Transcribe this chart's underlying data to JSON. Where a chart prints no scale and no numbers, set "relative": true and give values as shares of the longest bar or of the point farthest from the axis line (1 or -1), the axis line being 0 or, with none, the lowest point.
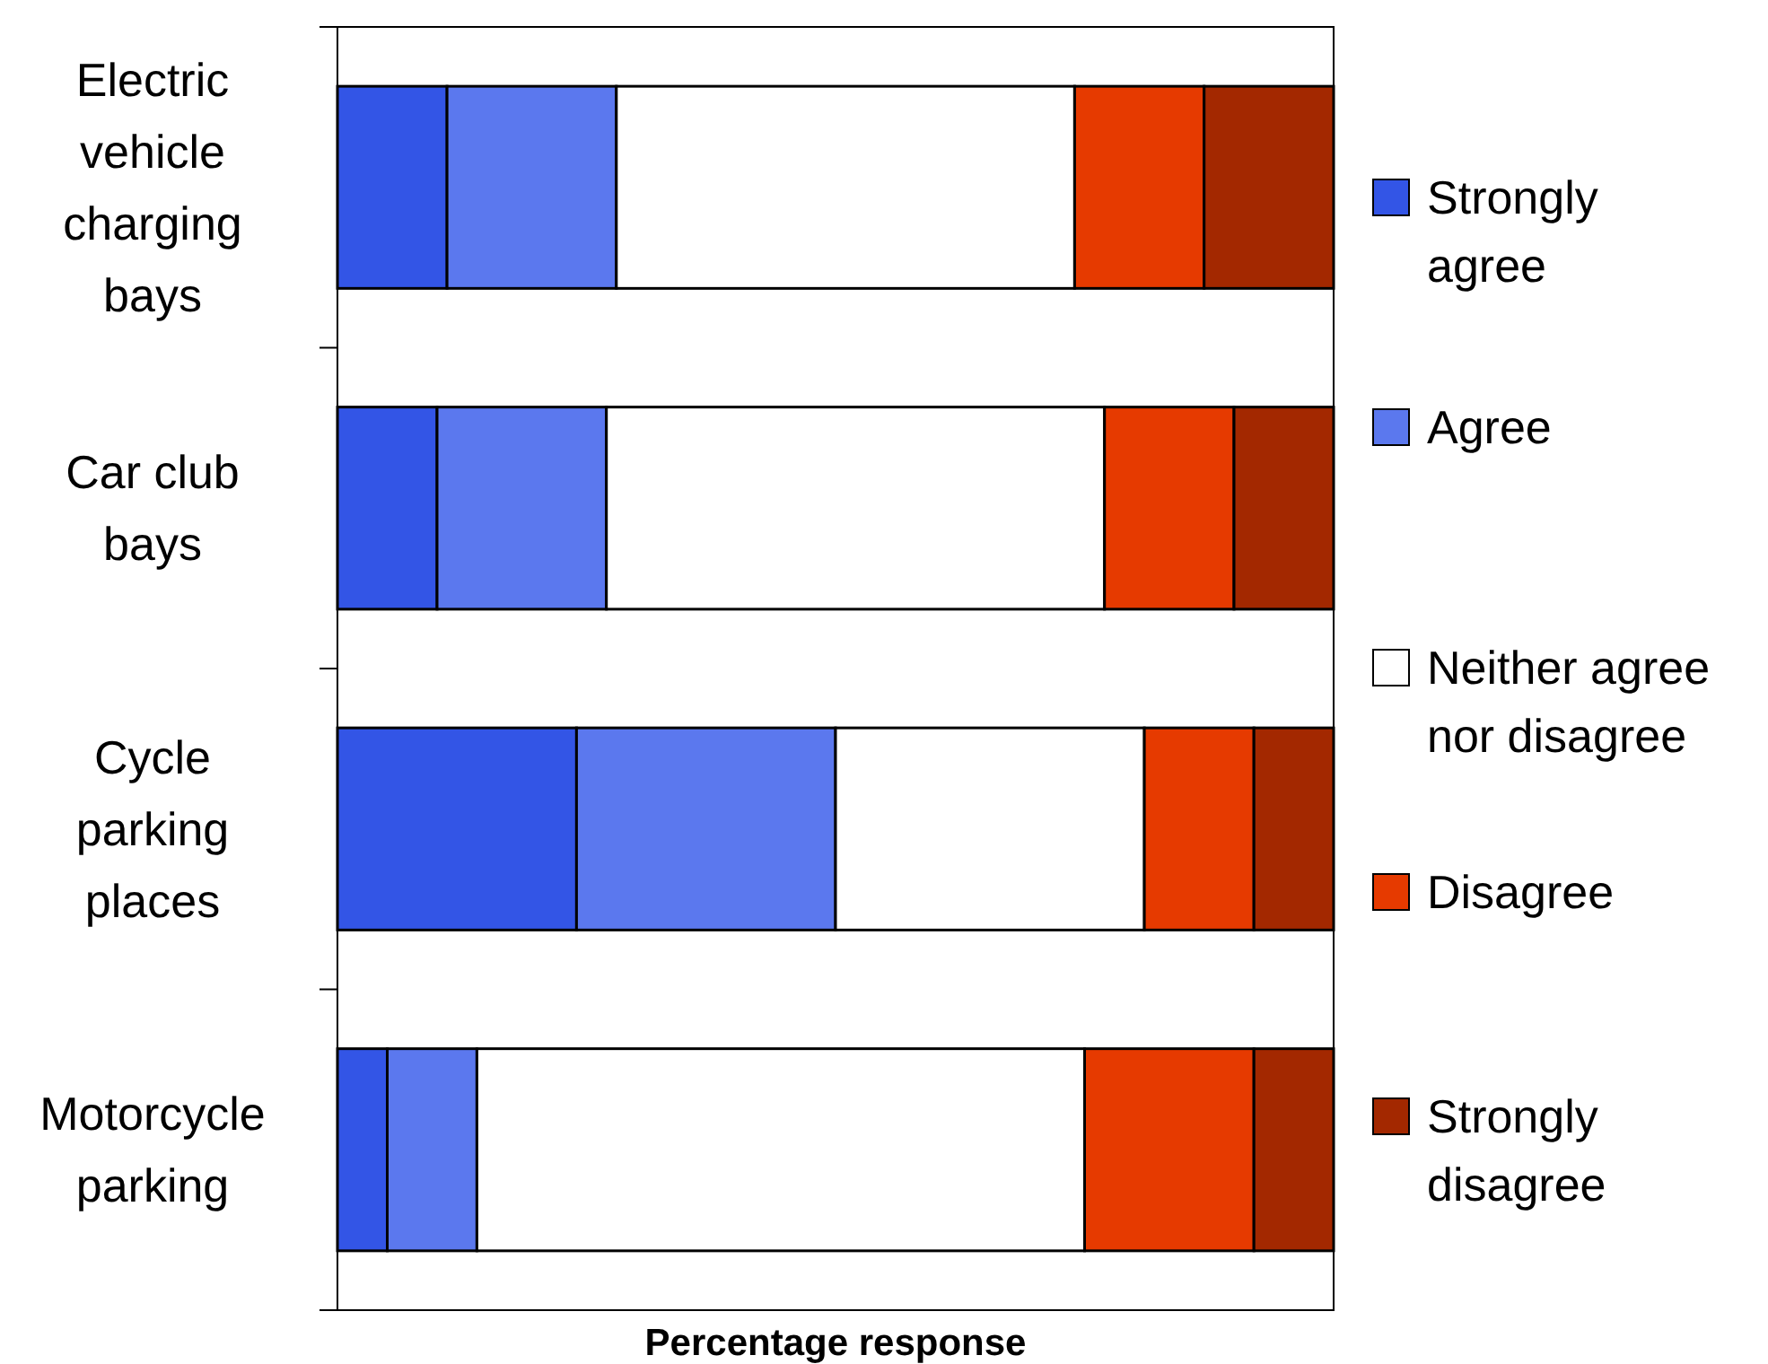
{
  "chart_data": {
    "type": "bar",
    "orientation": "horizontal",
    "stacked": true,
    "relative": true,
    "xlabel": "Percentage response",
    "categories": [
      "Electric vehicle charging bays",
      "Car club bays",
      "Cycle parking places",
      "Motorcycle parking"
    ],
    "series": [
      {
        "name": "Strongly agree",
        "color": "#3355e6",
        "values": [
          0.11,
          0.1,
          0.24,
          0.05
        ]
      },
      {
        "name": "Agree",
        "color": "#5b78ee",
        "values": [
          0.17,
          0.17,
          0.26,
          0.09
        ]
      },
      {
        "name": "Neither agree nor disagree",
        "color": "#ffffff",
        "values": [
          0.46,
          0.5,
          0.31,
          0.61
        ]
      },
      {
        "name": "Disagree",
        "color": "#e63a00",
        "values": [
          0.13,
          0.13,
          0.11,
          0.17
        ]
      },
      {
        "name": "Strongly disagree",
        "color": "#a32800",
        "values": [
          0.13,
          0.1,
          0.08,
          0.08
        ]
      }
    ],
    "legend": "right",
    "grid": false
  }
}
